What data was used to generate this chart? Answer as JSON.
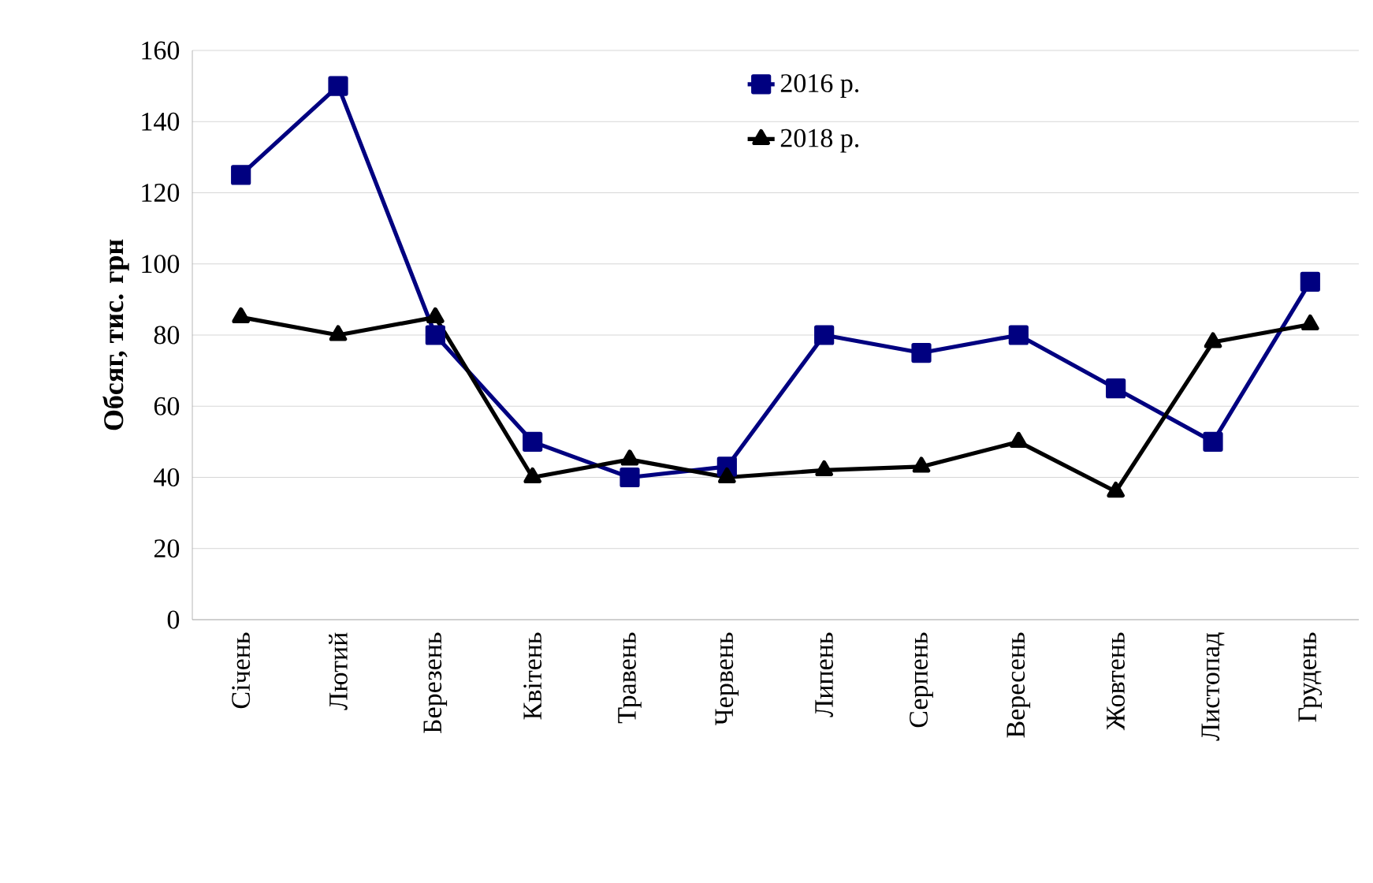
{
  "chart_data": {
    "type": "line",
    "ylabel": "Обсяг, тис. грн",
    "categories": [
      "Січень",
      "Лютий",
      "Березень",
      "Квітень",
      "Травень",
      "Червень",
      "Липень",
      "Серпень",
      "Вересень",
      "Жовтень",
      "Листопад",
      "Грудень"
    ],
    "series": [
      {
        "name": "2016 р.",
        "color": "#000080",
        "marker": "square",
        "values": [
          125,
          150,
          80,
          50,
          40,
          43,
          80,
          75,
          80,
          65,
          50,
          95
        ]
      },
      {
        "name": "2018 р.",
        "color": "#000000",
        "marker": "triangle",
        "values": [
          85,
          80,
          85,
          40,
          45,
          40,
          42,
          43,
          50,
          36,
          78,
          83
        ]
      }
    ],
    "ylim": [
      0,
      160
    ],
    "yticks": [
      0,
      20,
      40,
      60,
      80,
      100,
      120,
      140,
      160
    ],
    "grid": "y",
    "legend": "top",
    "line_style": "solid"
  }
}
